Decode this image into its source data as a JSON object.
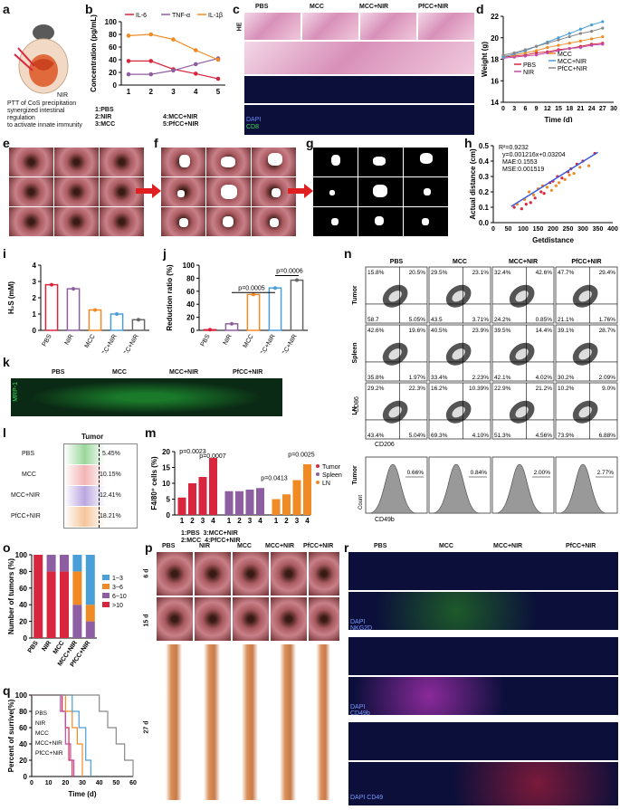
{
  "panel_labels": {
    "a": "a",
    "b": "b",
    "c": "c",
    "d": "d",
    "e": "e",
    "f": "f",
    "g": "g",
    "h": "h",
    "i": "i",
    "j": "j",
    "k": "k",
    "l": "l",
    "m": "m",
    "n": "n",
    "o": "o",
    "p": "p",
    "q": "q",
    "r": "r"
  },
  "panel_a": {
    "nir": "NIR",
    "caption": [
      "PTT of CoS precipitation",
      "synergized  intestinal regulation",
      "to activate innate immunity"
    ]
  },
  "groups": [
    "PBS",
    "MCC",
    "MCC+NIR",
    "PfCC+NIR"
  ],
  "groups5": [
    "PBS",
    "NIR",
    "MCC",
    "MCC+NIR",
    "PfCC+NIR"
  ],
  "panel_b": {
    "legend": [
      "IL-6",
      "TNF-α",
      "IL-1β"
    ],
    "colors": [
      "#d7263d",
      "#8e5ea2",
      "#f08a24"
    ],
    "ylabel": "Concentration (pg/mL)",
    "yticks": [
      "0",
      "20",
      "40",
      "60",
      "80",
      "100"
    ],
    "xticks": [
      "1",
      "2",
      "3",
      "4",
      "5"
    ],
    "key": [
      "1:PBS",
      "2:NIR",
      "3:MCC",
      "4:MCC+NIR",
      "5:PfCC+NIR"
    ],
    "chart_data": {
      "type": "line",
      "x": [
        1,
        2,
        3,
        4,
        5
      ],
      "ylim": [
        0,
        100
      ],
      "series": [
        {
          "name": "IL-6",
          "values": [
            38,
            38,
            25,
            18,
            10
          ]
        },
        {
          "name": "TNF-α",
          "values": [
            17,
            17,
            23,
            33,
            42
          ]
        },
        {
          "name": "IL-1β",
          "values": [
            78,
            80,
            72,
            55,
            40
          ]
        }
      ]
    }
  },
  "panel_c": {
    "row_label": "HE",
    "dapi": "DAPI",
    "cd8": "CD8"
  },
  "panel_d": {
    "ylabel": "Weight (g)",
    "xlabel": "Time (d)",
    "yticks": [
      "14",
      "16",
      "18",
      "20",
      "22"
    ],
    "xticks": [
      "0",
      "3",
      "6",
      "9",
      "12",
      "15",
      "18",
      "21",
      "24",
      "27",
      "30"
    ],
    "legend": [
      "MCC",
      "MCC+NIR",
      "PfCC+NIR",
      "PBS",
      "NIR"
    ],
    "chart_data": {
      "type": "line",
      "x": [
        0,
        3,
        6,
        9,
        12,
        15,
        18,
        21,
        24,
        27
      ],
      "ylim": [
        14,
        22
      ],
      "series": [
        {
          "name": "PBS",
          "values": [
            18.2,
            18.3,
            18.4,
            18.6,
            18.7,
            18.9,
            19.0,
            19.2,
            19.4,
            19.5
          ]
        },
        {
          "name": "NIR",
          "values": [
            18.1,
            18.2,
            18.3,
            18.4,
            18.6,
            18.8,
            19.0,
            19.1,
            19.3,
            19.4
          ]
        },
        {
          "name": "MCC",
          "values": [
            18.3,
            18.4,
            18.6,
            18.8,
            19.1,
            19.3,
            19.5,
            19.7,
            19.9,
            20.1
          ]
        },
        {
          "name": "MCC+NIR",
          "values": [
            18.2,
            18.5,
            18.8,
            19.2,
            19.6,
            20.0,
            20.4,
            20.8,
            21.2,
            21.5
          ]
        },
        {
          "name": "PfCC+NIR",
          "values": [
            18.4,
            18.6,
            18.9,
            19.2,
            19.5,
            19.8,
            20.1,
            20.4,
            20.6,
            20.9
          ]
        }
      ]
    }
  },
  "panel_h": {
    "ylabel": "Actual distance (cm)",
    "xlabel": "Getdistance",
    "stats": [
      "R²=0.9232",
      "y=0.001216x+0.03204",
      "MAE:0.1553",
      "MSE:0.001519"
    ],
    "yticks": [
      "0.0",
      "0.1",
      "0.2",
      "0.3",
      "0.4",
      "0.5"
    ],
    "xticks": [
      "0",
      "50",
      "100",
      "150",
      "200",
      "250",
      "300",
      "350",
      "400"
    ],
    "chart_data": {
      "type": "scatter",
      "xlim": [
        0,
        400
      ],
      "ylim": [
        0,
        0.5
      ],
      "fit": {
        "slope": 0.001216,
        "intercept": 0.03204
      },
      "x": [
        70,
        80,
        95,
        105,
        110,
        120,
        125,
        135,
        140,
        150,
        160,
        165,
        170,
        180,
        190,
        195,
        200,
        210,
        215,
        220,
        230,
        240,
        250,
        255,
        260,
        270,
        280,
        290,
        300,
        320,
        340
      ],
      "y": [
        0.1,
        0.12,
        0.09,
        0.15,
        0.12,
        0.2,
        0.13,
        0.18,
        0.16,
        0.22,
        0.2,
        0.24,
        0.19,
        0.23,
        0.26,
        0.21,
        0.27,
        0.24,
        0.3,
        0.26,
        0.29,
        0.28,
        0.33,
        0.31,
        0.35,
        0.32,
        0.38,
        0.36,
        0.4,
        0.37,
        0.45
      ]
    }
  },
  "panel_i": {
    "ylabel": "H₂S (mM)",
    "yticks": [
      "0",
      "1",
      "2",
      "3",
      "4"
    ],
    "chart_data": {
      "type": "bar",
      "categories": [
        "PBS",
        "NIR",
        "MCC",
        "MCC+NIR",
        "PfCC+NIR"
      ],
      "values": [
        2.8,
        2.55,
        1.25,
        1.0,
        0.65
      ],
      "ylim": [
        0,
        4
      ],
      "colors": [
        "#d7263d",
        "#8e5ea2",
        "#f08a24",
        "#4a9fd8",
        "#666666"
      ]
    }
  },
  "panel_j": {
    "ylabel": "Reduction ratio (%)",
    "yticks": [
      "0",
      "20",
      "40",
      "60",
      "80",
      "100"
    ],
    "pvals": [
      "p=0.0005",
      "p=0.0006"
    ],
    "chart_data": {
      "type": "bar",
      "categories": [
        "PBS",
        "NIR",
        "MCC",
        "MCC+NIR",
        "PfCC+NIR"
      ],
      "values": [
        1,
        10,
        55,
        65,
        77
      ],
      "ylim": [
        0,
        100
      ],
      "colors": [
        "#d7263d",
        "#8e5ea2",
        "#f08a24",
        "#4a9fd8",
        "#666666"
      ]
    }
  },
  "panel_k": {
    "label": "MRP-1"
  },
  "panel_l": {
    "title": "Tumor",
    "rows": [
      "PBS",
      "MCC",
      "MCC+NIR",
      "PfCC+NIR"
    ],
    "values": [
      "5.45%",
      "10.15%",
      "12.41%",
      "18.21%"
    ],
    "colors": [
      "#9bd79b",
      "#f3b4b4",
      "#bba7e0",
      "#f5c59a"
    ]
  },
  "panel_m": {
    "ylabel": "F4/80⁺ cells (%)",
    "yticks": [
      "0",
      "5",
      "10",
      "15",
      "20"
    ],
    "legend": [
      "Tumor",
      "Spleen",
      "LN"
    ],
    "pvals": [
      "p=0.0023",
      "p=0.0007",
      "p=0.0413",
      "p=0.0025"
    ],
    "xticks": [
      "1",
      "2",
      "3",
      "4",
      "1",
      "2",
      "3",
      "4",
      "1",
      "2",
      "3",
      "4"
    ],
    "key": [
      "1:PBS",
      "2:MCC",
      "3:MCC+NIR",
      "4:PfCC+NIR"
    ],
    "chart_data": {
      "type": "bar",
      "categories": [
        "Tumor-1",
        "Tumor-2",
        "Tumor-3",
        "Tumor-4",
        "Spleen-1",
        "Spleen-2",
        "Spleen-3",
        "Spleen-4",
        "LN-1",
        "LN-2",
        "LN-3",
        "LN-4"
      ],
      "values": [
        5.5,
        10,
        12,
        18,
        7.5,
        7.5,
        8,
        8.5,
        5,
        6.5,
        11,
        16
      ],
      "ylim": [
        0,
        20
      ]
    }
  },
  "panel_n": {
    "ylabel": "CD86",
    "xlabel": "CD206",
    "rows": [
      "Tumor",
      "Spleen",
      "LN"
    ],
    "quadrants": [
      [
        [
          "15.8%",
          "20.5%",
          "58.7",
          "5.05%"
        ],
        [
          "29.5%",
          "23.1%",
          "43.5",
          "3.71%"
        ],
        [
          "32.4%",
          "42.6%",
          "24.2%",
          "0.85%"
        ],
        [
          "47.7%",
          "29.4%",
          "21.1%",
          "1.76%"
        ]
      ],
      [
        [
          "42.6%",
          "19.6%",
          "35.8%",
          "1.97%"
        ],
        [
          "40.5%",
          "23.9%",
          "33.4%",
          "2.23%"
        ],
        [
          "39.5%",
          "14.4%",
          "42.1%",
          "4.02%"
        ],
        [
          "39.1%",
          "28.7%",
          "30.2%",
          "2.09%"
        ]
      ],
      [
        [
          "29.2%",
          "22.3%",
          "43.4%",
          "5.04%"
        ],
        [
          "16.2%",
          "10.39%",
          "69.3%",
          "4.10%"
        ],
        [
          "22.9%",
          "21.2%",
          "51.3%",
          "4.56%"
        ],
        [
          "10.2%",
          "9.0%",
          "73.9%",
          "6.88%"
        ]
      ]
    ],
    "hist_ylabel": "Tumor",
    "hist_count": "Count",
    "hist_xlabel": "CD49b",
    "hist_values": [
      "0.66%",
      "0.84%",
      "2.00%",
      "2.77%"
    ]
  },
  "panel_o": {
    "ylabel": "Number of tumors (%)",
    "yticks": [
      "0",
      "20",
      "40",
      "60",
      "80",
      "100"
    ],
    "legend": [
      "1~3",
      "3~6",
      "6~10",
      ">10"
    ],
    "colors": [
      "#4a9fd8",
      "#f08a24",
      "#8e5ea2",
      "#d7263d"
    ],
    "chart_data": {
      "type": "bar",
      "categories": [
        "PBS",
        "NIR",
        "MCC",
        "MCC+NIR",
        "PfCC+NIR"
      ],
      "series": [
        {
          "name": ">10",
          "values": [
            100,
            80,
            80,
            0,
            0
          ]
        },
        {
          "name": "6~10",
          "values": [
            0,
            20,
            20,
            40,
            20
          ]
        },
        {
          "name": "3~6",
          "values": [
            0,
            0,
            0,
            40,
            20
          ]
        },
        {
          "name": "1~3",
          "values": [
            0,
            0,
            0,
            20,
            60
          ]
        }
      ],
      "ylim": [
        0,
        100
      ]
    }
  },
  "panel_p": {
    "cols": [
      "PBS",
      "NIR",
      "MCC",
      "MCC+NIR",
      "PfCC+NIR"
    ],
    "rows": [
      "6 d",
      "15 d",
      "27 d"
    ]
  },
  "panel_q": {
    "ylabel": "Percent of surrive(%)",
    "xlabel": "Time (d)",
    "yticks": [
      "0",
      "20",
      "40",
      "60",
      "80",
      "100"
    ],
    "xticks": [
      "0",
      "10",
      "20",
      "30",
      "40",
      "50",
      "60"
    ],
    "legend": [
      "PBS",
      "NIR",
      "MCC",
      "MCC+NIR",
      "PfCC+NIR"
    ],
    "chart_data": {
      "type": "line",
      "xlim": [
        0,
        60
      ],
      "ylim": [
        0,
        100
      ],
      "series": [
        {
          "name": "PBS",
          "x": [
            0,
            18,
            20,
            22,
            24
          ],
          "values": [
            100,
            80,
            60,
            20,
            0
          ]
        },
        {
          "name": "NIR",
          "x": [
            0,
            17,
            20,
            23,
            25
          ],
          "values": [
            100,
            80,
            40,
            20,
            0
          ]
        },
        {
          "name": "MCC",
          "x": [
            0,
            20,
            24,
            27,
            30
          ],
          "values": [
            100,
            80,
            60,
            40,
            0
          ]
        },
        {
          "name": "MCC+NIR",
          "x": [
            0,
            24,
            28,
            32,
            35
          ],
          "values": [
            100,
            80,
            60,
            20,
            0
          ]
        },
        {
          "name": "PfCC+NIR",
          "x": [
            0,
            40,
            45,
            50,
            55,
            60
          ],
          "values": [
            100,
            80,
            60,
            40,
            20,
            0
          ]
        }
      ]
    }
  },
  "panel_r": {
    "cols": [
      "PBS",
      "MCC",
      "MCC+NIR",
      "PfCC+NIR"
    ],
    "stains": [
      "DAPI  NKG2D",
      "DAPI  CD49b",
      "DAPI  CD49"
    ]
  }
}
